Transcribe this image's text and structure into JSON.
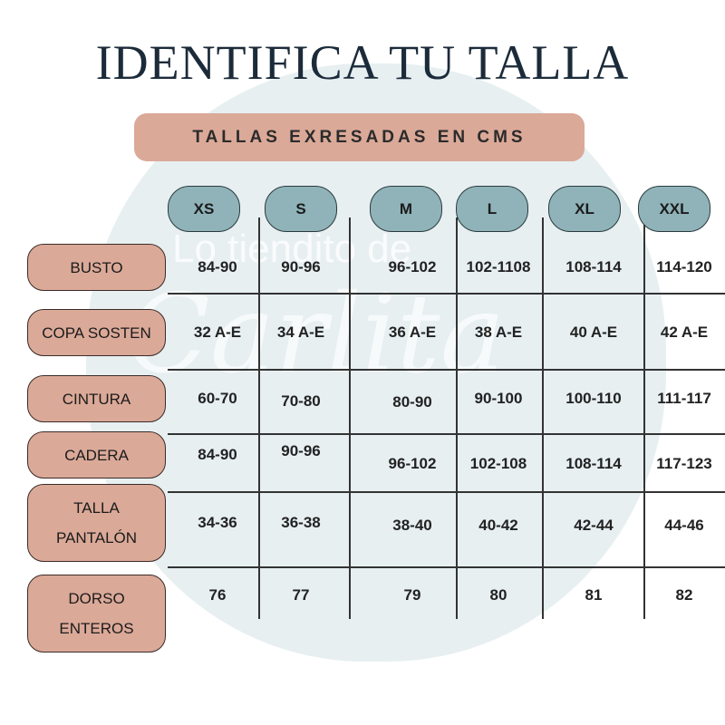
{
  "title": "IDENTIFICA TU TALLA",
  "subtitle": "TALLAS EXRESADAS EN CMS",
  "watermark": [
    "Lo tiendito de",
    "Carlita"
  ],
  "sizes": [
    "XS",
    "S",
    "M",
    "L",
    "XL",
    "XXL"
  ],
  "rows": [
    {
      "label": "BUSTO",
      "values": [
        "84-90",
        "90-96",
        "96-102",
        "102-1108",
        "108-114",
        "114-120"
      ]
    },
    {
      "label": "COPA SOSTEN",
      "values": [
        "32 A-E",
        "34 A-E",
        "36 A-E",
        "38 A-E",
        "40 A-E",
        "42 A-E"
      ]
    },
    {
      "label": "CINTURA",
      "values": [
        "60-70",
        "70-80",
        "80-90",
        "90-100",
        "100-110",
        "111-117"
      ]
    },
    {
      "label": "CADERA",
      "values": [
        "84-90",
        "90-96",
        "96-102",
        "102-108",
        "108-114",
        "117-123"
      ]
    },
    {
      "label": "TALLA PANTALÓN",
      "values": [
        "34-36",
        "36-38",
        "38-40",
        "40-42",
        "42-44",
        "44-46"
      ]
    },
    {
      "label": "DORSO ENTEROS",
      "values": [
        "76",
        "77",
        "79",
        "80",
        "81",
        "82"
      ]
    }
  ]
}
